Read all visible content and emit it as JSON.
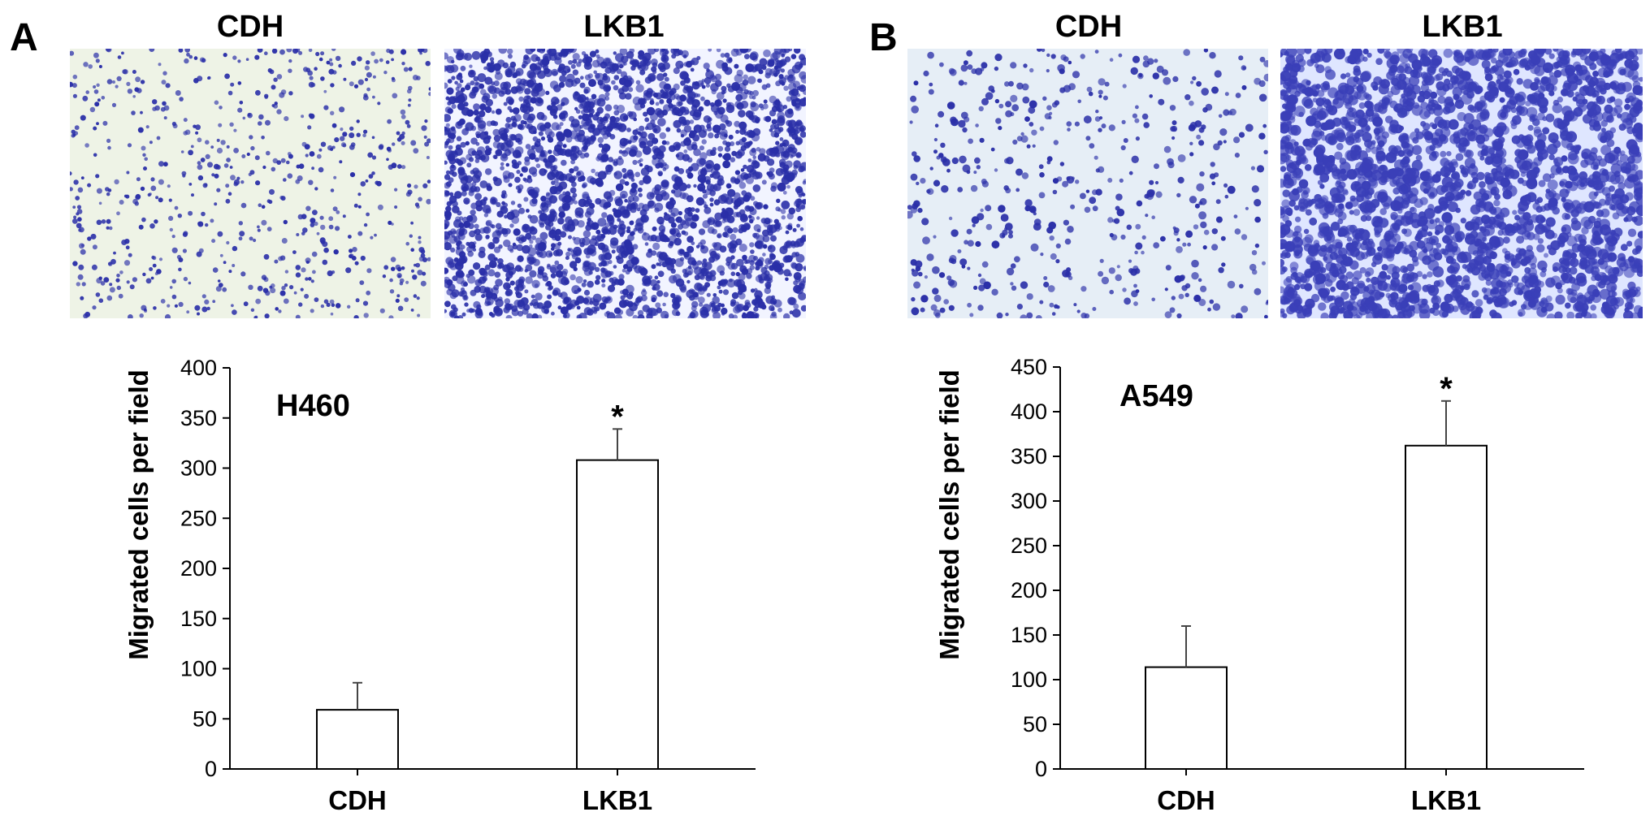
{
  "panels": [
    {
      "letter": "A",
      "micro_labels": [
        "CDH",
        "LKB1"
      ],
      "chart_data": {
        "type": "bar",
        "title": "",
        "annotation": "H460",
        "categories": [
          "CDH",
          "LKB1"
        ],
        "values": [
          59,
          308
        ],
        "errors": [
          27,
          31
        ],
        "significance": [
          "",
          "*"
        ],
        "xlabel": "",
        "ylabel": "Migrated cells per field",
        "ylim": [
          0,
          400
        ],
        "yticks": [
          0,
          50,
          100,
          150,
          200,
          250,
          300,
          350,
          400
        ],
        "grid": false
      }
    },
    {
      "letter": "B",
      "micro_labels": [
        "CDH",
        "LKB1"
      ],
      "chart_data": {
        "type": "bar",
        "title": "",
        "annotation": "A549",
        "categories": [
          "CDH",
          "LKB1"
        ],
        "values": [
          114,
          362
        ],
        "errors": [
          46,
          50
        ],
        "significance": [
          "",
          "*"
        ],
        "xlabel": "",
        "ylabel": "Migrated cells per field",
        "ylim": [
          0,
          450
        ],
        "yticks": [
          0,
          50,
          100,
          150,
          200,
          250,
          300,
          350,
          400,
          450
        ],
        "grid": false
      }
    }
  ],
  "colors": {
    "axis": "#000000",
    "bar_fill": "#ffffff",
    "sparse_bg": "#eef3e6",
    "sparse_bg_b": "#e6eef6",
    "cell_stain": "#2a2fa8",
    "dense_bg": "#f2f4ff"
  }
}
